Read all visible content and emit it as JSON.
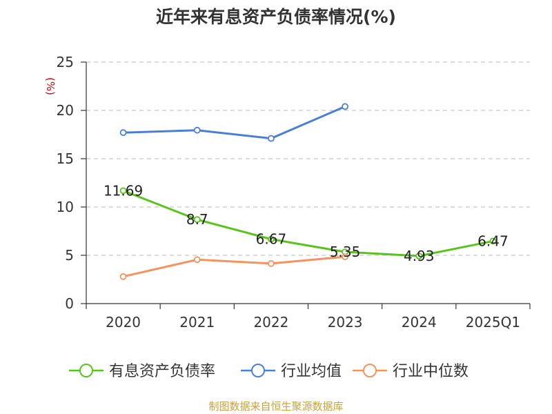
{
  "chart_data": {
    "type": "line",
    "title": "近年来有息资产负债率情况(%)",
    "ylabel": "(%)",
    "ylim": [
      0,
      25
    ],
    "yticks": [
      0,
      5,
      10,
      15,
      20,
      25
    ],
    "categories": [
      "2020",
      "2021",
      "2022",
      "2023",
      "2024",
      "2025Q1"
    ],
    "grid": true,
    "legend_position": "bottom",
    "series": [
      {
        "name": "有息资产负债率",
        "color": "#5ac21d",
        "values": [
          11.69,
          8.7,
          6.67,
          5.35,
          4.93,
          6.47
        ],
        "data_labels": [
          "11.69",
          "8.7",
          "6.67",
          "5.35",
          "4.93",
          "6.47"
        ]
      },
      {
        "name": "行业均值",
        "color": "#4a7fd6",
        "values": [
          17.7,
          17.95,
          17.1,
          20.4,
          null,
          null
        ]
      },
      {
        "name": "行业中位数",
        "color": "#f5925f",
        "values": [
          2.8,
          4.55,
          4.15,
          4.85,
          null,
          null
        ]
      }
    ]
  },
  "ylabel_color": "#cc0000",
  "source": {
    "text": "制图数据来自恒生聚源数据库",
    "color": "#c8a040"
  }
}
